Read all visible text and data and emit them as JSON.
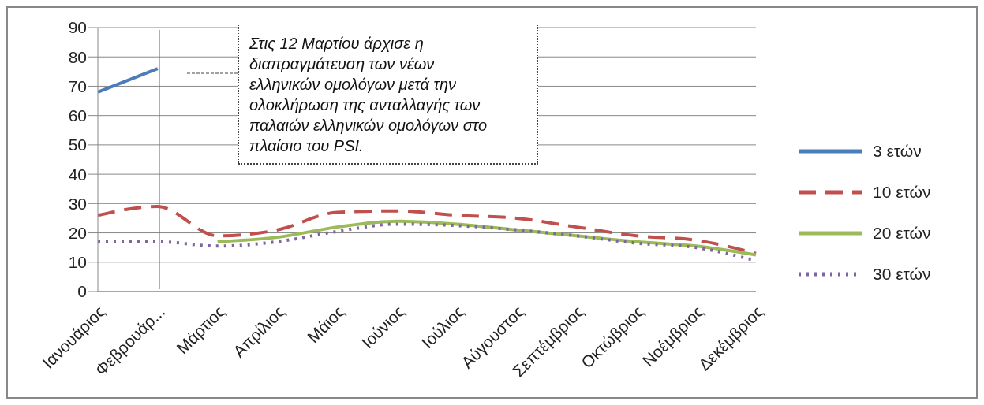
{
  "chart_data": {
    "type": "line",
    "categories": [
      "Ιανουάριος",
      "Φεβρουάρ...",
      "Μάρτιος",
      "Απρίλιος",
      "Μάιος",
      "Ιούνιος",
      "Ιούλιος",
      "Αύγουστος",
      "Σεπτέμβριος",
      "Οκτώβριος",
      "Νοέμβριος",
      "Δεκέμβριος"
    ],
    "series": [
      {
        "name": "3 ετών",
        "color": "#4a7ebb",
        "line_style": "solid",
        "values": [
          68,
          76,
          null,
          null,
          null,
          null,
          null,
          null,
          null,
          null,
          null,
          null
        ]
      },
      {
        "name": "10 ετών",
        "color": "#c0504d",
        "line_style": "dashed",
        "values": [
          26,
          29,
          19,
          21,
          27,
          27.5,
          26,
          25,
          22,
          19,
          17.5,
          13
        ]
      },
      {
        "name": "20 ετών",
        "color": "#9bbb59",
        "line_style": "solid",
        "values": [
          null,
          null,
          17,
          18.5,
          22,
          24,
          23,
          21,
          19,
          17,
          15.5,
          12.5
        ]
      },
      {
        "name": "30 ετών",
        "color": "#8064a2",
        "line_style": "dotted",
        "values": [
          17,
          17,
          15.5,
          17,
          20.5,
          23,
          22.5,
          21,
          19,
          16.5,
          15,
          10.5
        ]
      }
    ],
    "ylim": [
      0,
      90
    ],
    "yticks": [
      0,
      10,
      20,
      30,
      40,
      50,
      60,
      70,
      80,
      90
    ],
    "grid": "y",
    "legend": "right",
    "marker": "none",
    "ref_lines": [
      {
        "axis": "x",
        "value": "Φεβρουάρ...",
        "color": "#8064a2"
      }
    ],
    "annotations": [
      "Στις 12 Μαρτίου άρχισε η διαπραγμάτευση των νέων ελληνικών ομολόγων μετά την ολοκλήρωση της ανταλλαγής των παλαιών ελληνικών ομολόγων στο πλαίσιο του PSI."
    ]
  }
}
